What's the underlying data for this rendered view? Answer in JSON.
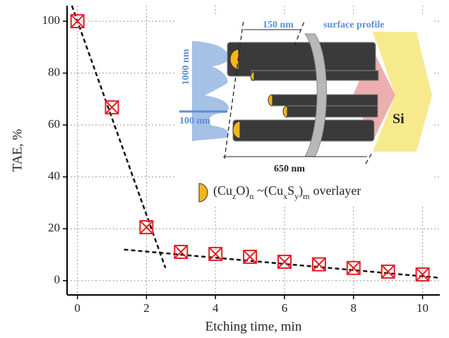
{
  "chart_data": {
    "type": "scatter",
    "x_label": "Etching time, min",
    "y_label": "TAE, %",
    "x": [
      0,
      1,
      2,
      3,
      4,
      5,
      6,
      7,
      8,
      9,
      10
    ],
    "series": [
      {
        "color": "#e41e26",
        "values": [
          100,
          66.8,
          20.6,
          11.1,
          10.3,
          9.2,
          7.3,
          6.3,
          4.9,
          3.5,
          2.4
        ]
      }
    ],
    "fit_lines": [
      {
        "x": [
          -0.16,
          2.55
        ],
        "y": [
          106,
          4.9
        ]
      },
      {
        "x": [
          1.35,
          10.5
        ],
        "y": [
          12,
          1.1
        ]
      }
    ],
    "xlim": [
      -0.3,
      10.5
    ],
    "ylim": [
      -5.5,
      106
    ],
    "xticks": [
      0,
      2,
      4,
      6,
      8,
      10
    ],
    "yticks": [
      0,
      20,
      40,
      60,
      80,
      100
    ],
    "grid": true,
    "inset": {
      "width_label": "150 nm",
      "profile_label": "surface profile",
      "height_label": "1000 nm",
      "depth_label": "100 nm",
      "length_label": "650 nm",
      "substrate_label": "Si",
      "legend_text": [
        "(Cu",
        "z",
        "O)",
        "n",
        "~(Cu",
        "x",
        "S",
        "y",
        ")",
        "m",
        "overlayer"
      ]
    }
  }
}
